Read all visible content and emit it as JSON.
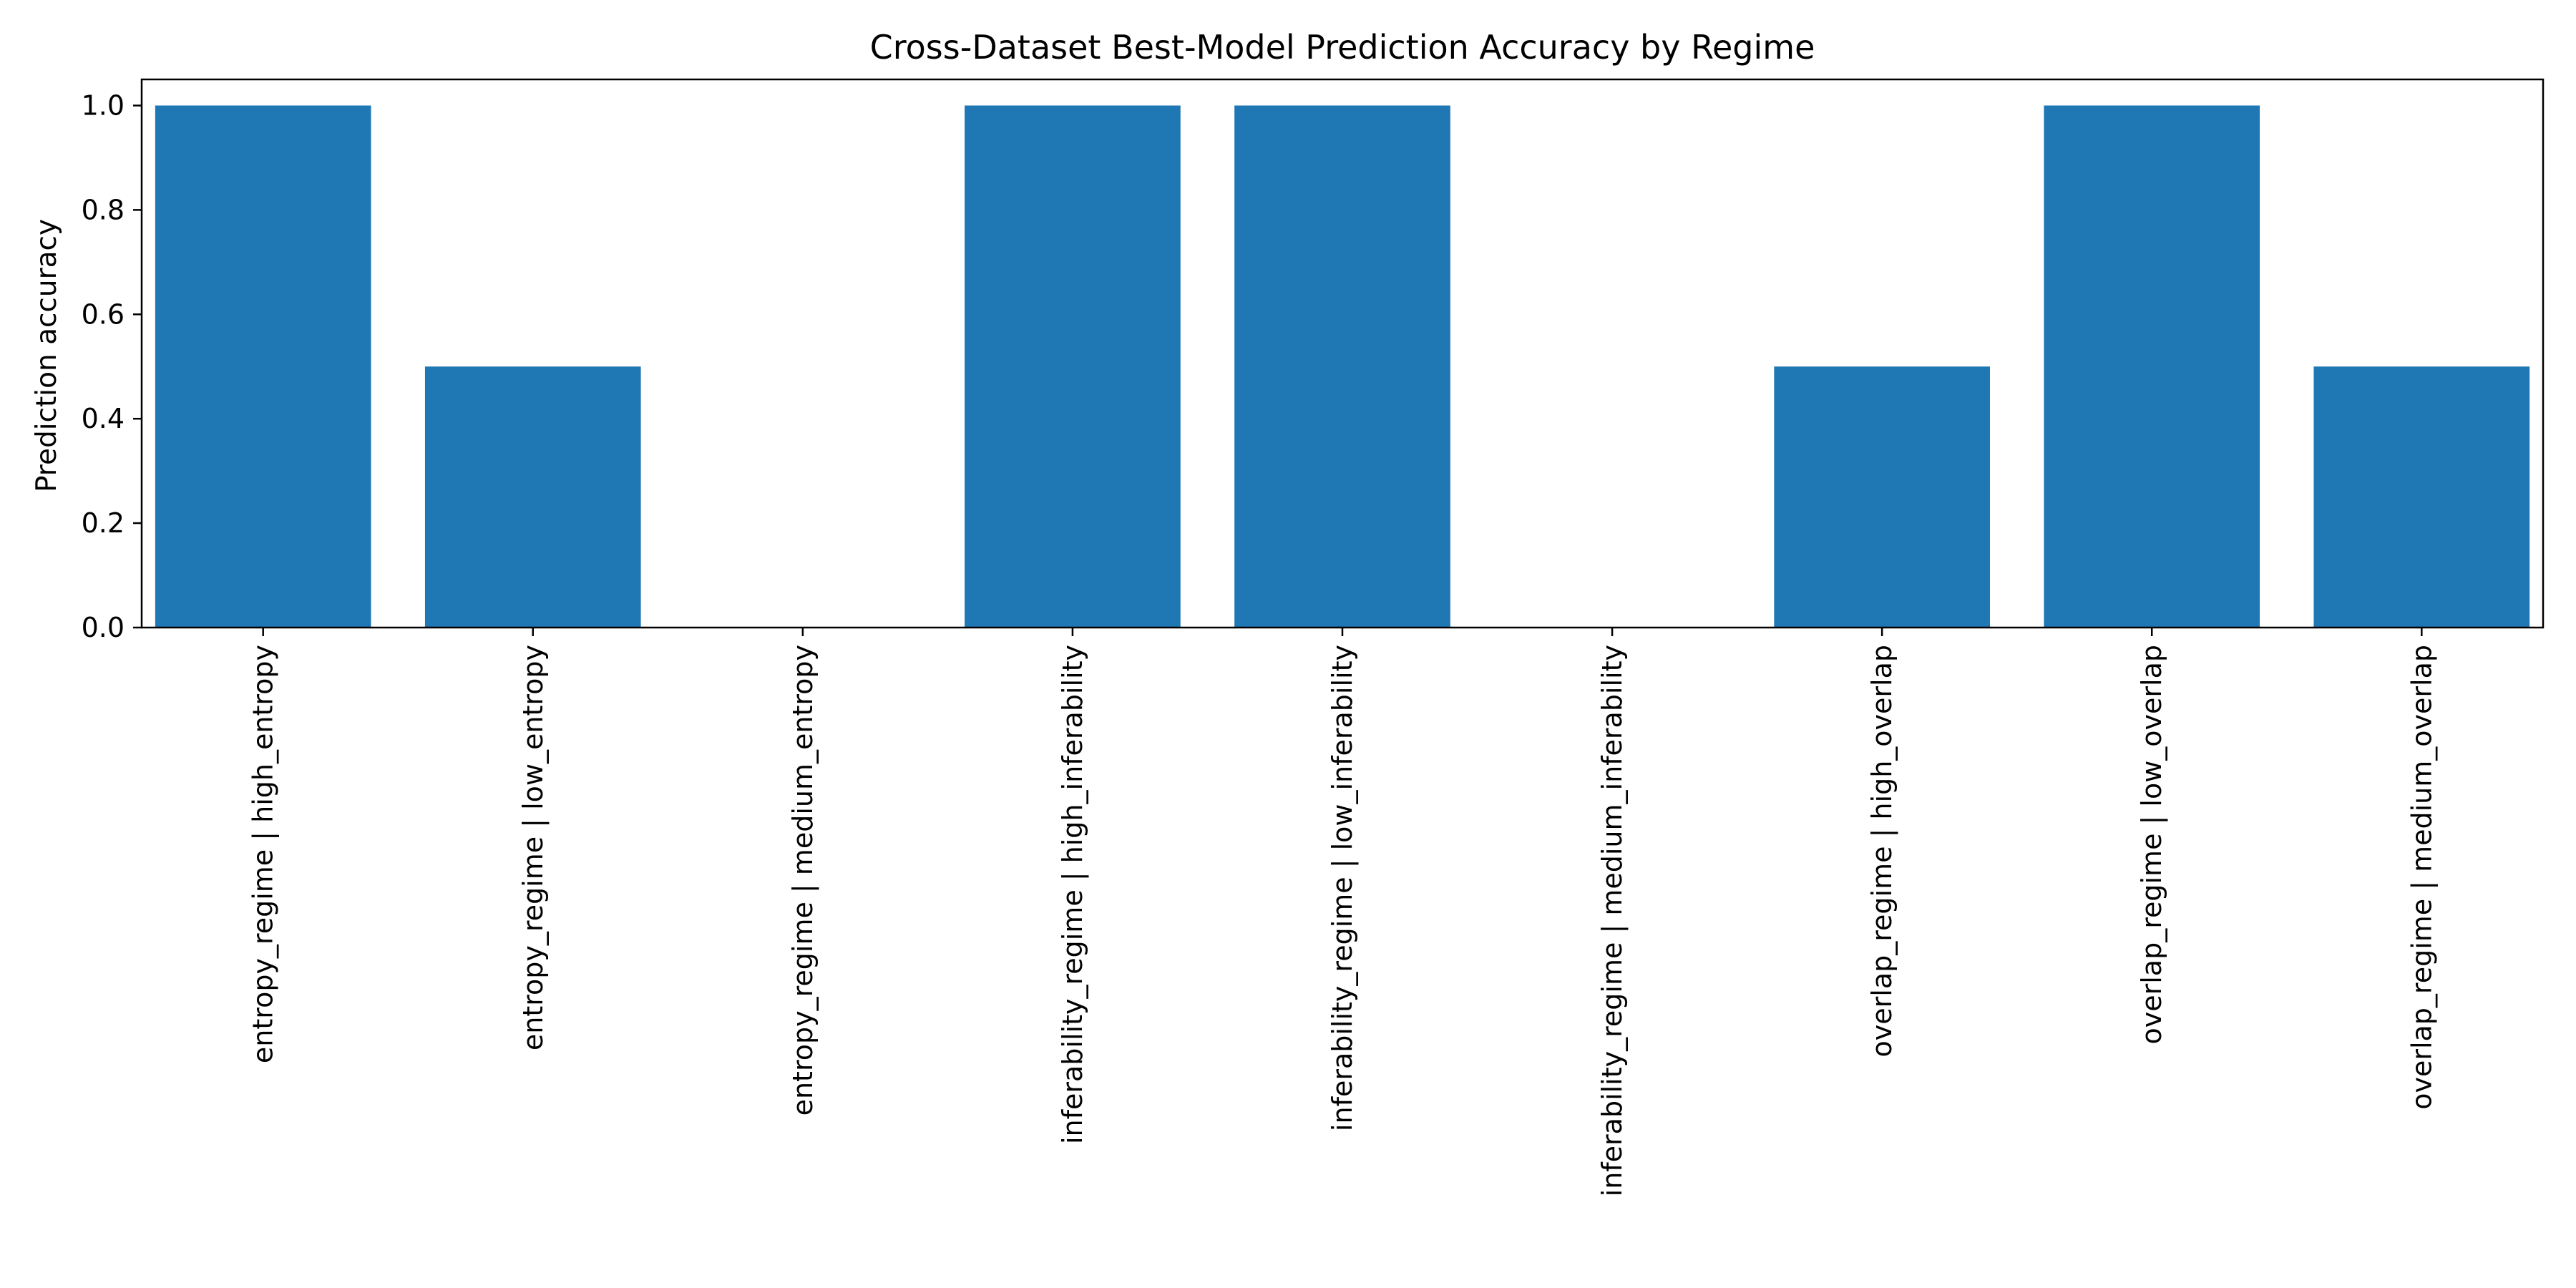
{
  "chart_data": {
    "type": "bar",
    "title": "Cross-Dataset Best-Model Prediction Accuracy by Regime",
    "xlabel": "",
    "ylabel": "Prediction accuracy",
    "ylim": [
      0,
      1.05
    ],
    "yticks": [
      0.0,
      0.2,
      0.4,
      0.6,
      0.8,
      1.0
    ],
    "ytick_labels": [
      "0.0",
      "0.2",
      "0.4",
      "0.6",
      "0.8",
      "1.0"
    ],
    "grid": false,
    "legend": "none",
    "bar_color": "#1f77b4",
    "categories": [
      "entropy_regime | high_entropy",
      "entropy_regime | low_entropy",
      "entropy_regime | medium_entropy",
      "inferability_regime | high_inferability",
      "inferability_regime | low_inferability",
      "inferability_regime | medium_inferability",
      "overlap_regime | high_overlap",
      "overlap_regime | low_overlap",
      "overlap_regime | medium_overlap"
    ],
    "values": [
      1.0,
      0.5,
      0.0,
      1.0,
      1.0,
      0.0,
      0.5,
      1.0,
      0.5
    ]
  }
}
